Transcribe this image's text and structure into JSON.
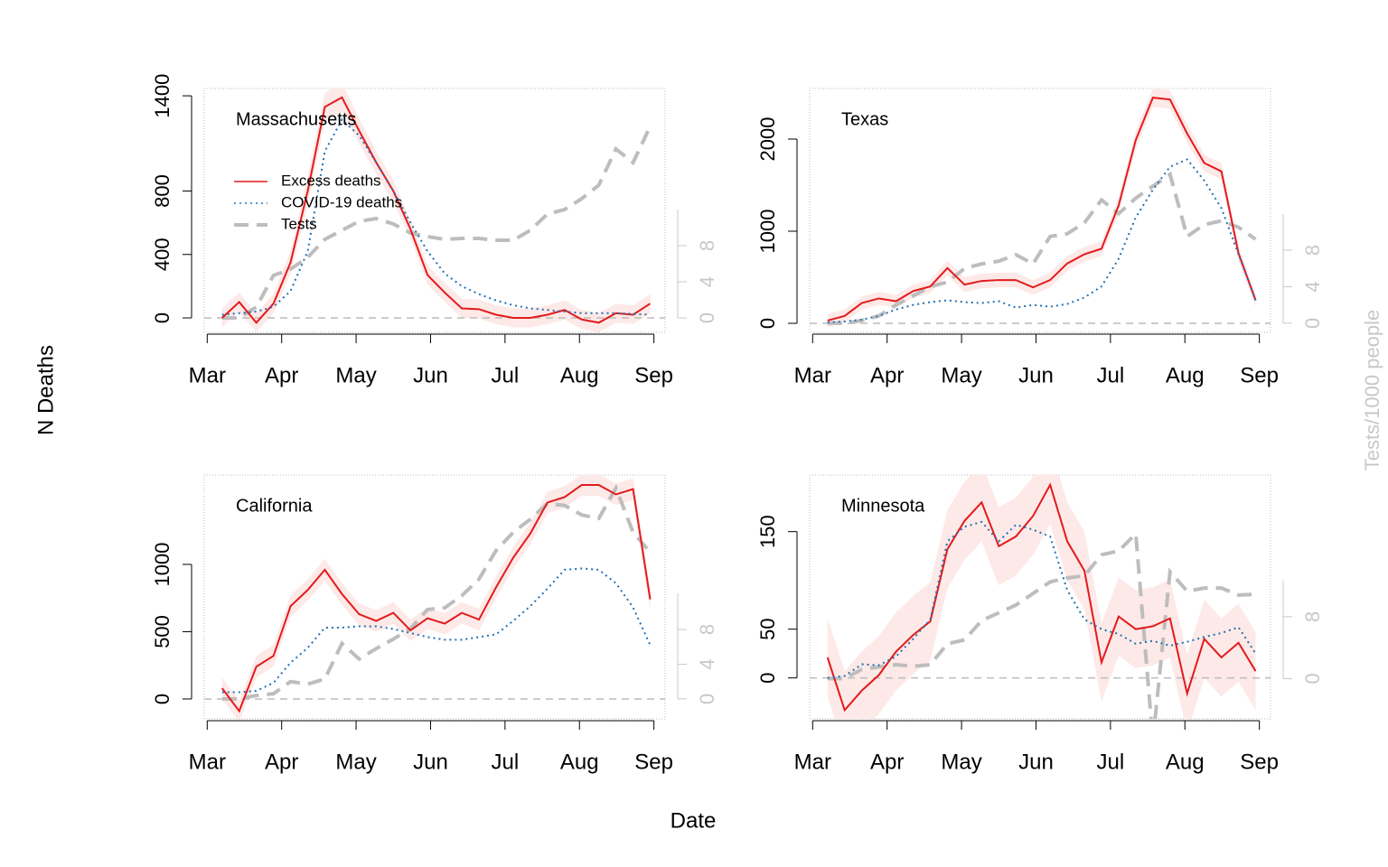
{
  "labels": {
    "x": "Date",
    "y": "N Deaths",
    "y2": "Tests/1000 people"
  },
  "chart_data": [
    {
      "type": "line",
      "title": "Massachusetts",
      "legend": "upper left",
      "hline": 0,
      "x": [
        3.2,
        3.43,
        3.66,
        3.89,
        4.12,
        4.35,
        4.58,
        4.81,
        5.04,
        5.27,
        5.5,
        5.73,
        5.96,
        6.19,
        6.42,
        6.65,
        6.88,
        7.11,
        7.34,
        7.57,
        7.8,
        8.03,
        8.26,
        8.49,
        8.72,
        8.95
      ],
      "xlim": [
        2.96,
        9.15
      ],
      "xticks": [
        {
          "value": 3,
          "label": "Mar"
        },
        {
          "value": 4,
          "label": "Apr"
        },
        {
          "value": 5,
          "label": "May"
        },
        {
          "value": 6,
          "label": "Jun"
        },
        {
          "value": 7,
          "label": "Jul"
        },
        {
          "value": 8,
          "label": "Aug"
        },
        {
          "value": 9,
          "label": "Sep"
        }
      ],
      "ylim": [
        -91,
        1446
      ],
      "yticks": [
        0,
        400,
        800,
        1400
      ],
      "y2lim": [
        -1.6,
        25.4
      ],
      "y2ticks": [
        0,
        4,
        8
      ],
      "series": [
        {
          "name": "Excess deaths",
          "color": "#e31a1c",
          "dash": "solid",
          "band_color": "#fde9e7",
          "values": [
            0,
            100,
            -30,
            90,
            350,
            800,
            1330,
            1390,
            1180,
            980,
            800,
            560,
            270,
            160,
            60,
            55,
            20,
            0,
            0,
            20,
            50,
            -10,
            -30,
            30,
            20,
            90
          ],
          "lower": [
            -60,
            40,
            -90,
            30,
            280,
            710,
            1240,
            1300,
            1100,
            910,
            730,
            500,
            210,
            100,
            0,
            -5,
            -40,
            -60,
            -60,
            -40,
            -10,
            -70,
            -90,
            -30,
            -40,
            30
          ],
          "upper": [
            60,
            160,
            30,
            150,
            420,
            890,
            1420,
            1480,
            1260,
            1050,
            870,
            620,
            330,
            220,
            120,
            115,
            80,
            60,
            60,
            80,
            110,
            50,
            30,
            90,
            80,
            150
          ]
        },
        {
          "name": "COVID-19 deaths",
          "color": "#2171b5",
          "dash": "dotted",
          "values": [
            20,
            30,
            40,
            70,
            170,
            420,
            1050,
            1250,
            1150,
            980,
            800,
            600,
            420,
            280,
            200,
            150,
            110,
            80,
            60,
            50,
            40,
            30,
            30,
            30,
            25,
            20
          ]
        },
        {
          "name": "Tests",
          "color": "#bdbdbd",
          "dash": "dashed",
          "axis": "y2",
          "values": [
            0,
            0,
            1.2,
            4.7,
            5.4,
            6.7,
            8.7,
            9.7,
            10.7,
            11,
            10.4,
            9.4,
            9,
            8.7,
            8.8,
            8.8,
            8.6,
            8.6,
            9.7,
            11.5,
            12,
            13.2,
            14.7,
            18.7,
            17.2,
            21.2
          ]
        }
      ]
    },
    {
      "type": "line",
      "title": "Texas",
      "hline": 0,
      "x": [
        3.2,
        3.43,
        3.66,
        3.89,
        4.12,
        4.35,
        4.58,
        4.81,
        5.04,
        5.27,
        5.5,
        5.73,
        5.96,
        6.19,
        6.42,
        6.65,
        6.88,
        7.11,
        7.34,
        7.57,
        7.8,
        8.03,
        8.26,
        8.49,
        8.72,
        8.95
      ],
      "xlim": [
        2.96,
        9.15
      ],
      "xticks": [
        {
          "value": 3,
          "label": "Mar"
        },
        {
          "value": 4,
          "label": "Apr"
        },
        {
          "value": 5,
          "label": "May"
        },
        {
          "value": 6,
          "label": "Jun"
        },
        {
          "value": 7,
          "label": "Jul"
        },
        {
          "value": 8,
          "label": "Aug"
        },
        {
          "value": 9,
          "label": "Sep"
        }
      ],
      "ylim": [
        -98,
        2549
      ],
      "yticks": [
        0,
        1000,
        2000
      ],
      "y2lim": [
        -1,
        25.7
      ],
      "y2ticks": [
        0,
        4,
        8
      ],
      "series": [
        {
          "color": "#e31a1c",
          "dash": "solid",
          "band_color": "#fde9e7",
          "values": [
            30,
            80,
            220,
            270,
            240,
            350,
            400,
            600,
            420,
            460,
            470,
            470,
            390,
            470,
            650,
            750,
            810,
            1280,
            1990,
            2450,
            2430,
            2060,
            1740,
            1650,
            760,
            250
          ],
          "lower": [
            -40,
            10,
            150,
            200,
            170,
            280,
            330,
            520,
            340,
            380,
            390,
            390,
            310,
            390,
            570,
            670,
            730,
            1190,
            1890,
            2350,
            2330,
            1960,
            1650,
            1560,
            680,
            180
          ],
          "upper": [
            100,
            150,
            290,
            340,
            310,
            420,
            470,
            680,
            500,
            540,
            550,
            550,
            470,
            550,
            730,
            830,
            890,
            1370,
            2090,
            2550,
            2530,
            2160,
            1830,
            1740,
            840,
            320
          ]
        },
        {
          "color": "#2171b5",
          "dash": "dotted",
          "values": [
            10,
            20,
            40,
            80,
            150,
            200,
            230,
            250,
            230,
            220,
            240,
            170,
            200,
            180,
            210,
            280,
            400,
            700,
            1150,
            1450,
            1700,
            1780,
            1550,
            1250,
            750,
            250
          ]
        },
        {
          "color": "#bdbdbd",
          "dash": "dashed",
          "axis": "y2",
          "values": [
            0,
            0,
            0.3,
            0.8,
            2,
            3,
            4,
            4.5,
            6,
            6.5,
            6.8,
            7.5,
            6.5,
            9.5,
            9.8,
            11,
            13.5,
            12,
            13.7,
            15,
            16.3,
            9.5,
            10.8,
            11.2,
            10.5,
            9.2
          ]
        }
      ]
    },
    {
      "type": "line",
      "title": "California",
      "hline": 0,
      "x": [
        3.2,
        3.43,
        3.66,
        3.89,
        4.12,
        4.35,
        4.58,
        4.81,
        5.04,
        5.27,
        5.5,
        5.73,
        5.96,
        6.19,
        6.42,
        6.65,
        6.88,
        7.11,
        7.34,
        7.57,
        7.8,
        8.03,
        8.26,
        8.49,
        8.72,
        8.95
      ],
      "xlim": [
        2.96,
        9.15
      ],
      "xticks": [
        {
          "value": 3,
          "label": "Mar"
        },
        {
          "value": 4,
          "label": "Apr"
        },
        {
          "value": 5,
          "label": "May"
        },
        {
          "value": 6,
          "label": "Jun"
        },
        {
          "value": 7,
          "label": "Jul"
        },
        {
          "value": 8,
          "label": "Aug"
        },
        {
          "value": 9,
          "label": "Sep"
        }
      ],
      "ylim": [
        -148,
        1664
      ],
      "yticks": [
        0,
        500,
        1000
      ],
      "y2lim": [
        -2.3,
        25.8
      ],
      "y2ticks": [
        0,
        4,
        8
      ],
      "series": [
        {
          "color": "#e31a1c",
          "dash": "solid",
          "band_color": "#fde9e7",
          "values": [
            80,
            -90,
            240,
            320,
            690,
            810,
            960,
            780,
            630,
            580,
            640,
            510,
            600,
            560,
            640,
            590,
            830,
            1050,
            1230,
            1460,
            1500,
            1590,
            1590,
            1520,
            1560,
            740
          ],
          "lower": [
            0,
            -170,
            160,
            240,
            610,
            730,
            880,
            700,
            550,
            500,
            560,
            430,
            520,
            480,
            560,
            510,
            750,
            970,
            1150,
            1380,
            1420,
            1510,
            1510,
            1440,
            1480,
            660
          ],
          "upper": [
            160,
            -10,
            320,
            400,
            770,
            890,
            1040,
            860,
            710,
            660,
            720,
            590,
            680,
            640,
            720,
            670,
            910,
            1130,
            1310,
            1540,
            1580,
            1670,
            1670,
            1600,
            1640,
            820
          ]
        },
        {
          "color": "#2171b5",
          "dash": "dotted",
          "values": [
            50,
            50,
            60,
            120,
            270,
            380,
            530,
            530,
            540,
            540,
            520,
            490,
            460,
            440,
            440,
            460,
            480,
            580,
            690,
            820,
            960,
            970,
            960,
            860,
            680,
            400
          ]
        },
        {
          "color": "#bdbdbd",
          "dash": "dashed",
          "axis": "y2",
          "values": [
            0,
            0,
            0.4,
            0.6,
            2,
            1.7,
            2.3,
            6.4,
            4.6,
            5.8,
            6.9,
            8.1,
            10.3,
            10.5,
            11.9,
            13.8,
            17.1,
            19.2,
            20.7,
            22.5,
            22.3,
            21.2,
            20.8,
            24.3,
            19.2,
            16.9
          ]
        }
      ]
    },
    {
      "type": "line",
      "title": "Minnesota",
      "hline": 0,
      "x": [
        3.2,
        3.43,
        3.66,
        3.89,
        4.12,
        4.35,
        4.58,
        4.81,
        5.04,
        5.27,
        5.5,
        5.73,
        5.96,
        6.19,
        6.42,
        6.65,
        6.88,
        7.11,
        7.34,
        7.57,
        7.8,
        8.03,
        8.26,
        8.49,
        8.72,
        8.95
      ],
      "xlim": [
        2.96,
        9.15
      ],
      "xticks": [
        {
          "value": 3,
          "label": "Mar"
        },
        {
          "value": 4,
          "label": "Apr"
        },
        {
          "value": 5,
          "label": "May"
        },
        {
          "value": 6,
          "label": "Jun"
        },
        {
          "value": 7,
          "label": "Jul"
        },
        {
          "value": 8,
          "label": "Aug"
        },
        {
          "value": 9,
          "label": "Sep"
        }
      ],
      "ylim": [
        -42,
        208
      ],
      "yticks": [
        0,
        50,
        150
      ],
      "y2lim": [
        -5.2,
        26.3
      ],
      "y2ticks": [
        0,
        8
      ],
      "series": [
        {
          "color": "#e31a1c",
          "dash": "solid",
          "band_color": "#fde9e7",
          "values": [
            21,
            -33,
            -13,
            3,
            27,
            44,
            58,
            132,
            161,
            180,
            135,
            145,
            166,
            198,
            140,
            110,
            16,
            63,
            50,
            53,
            61,
            -16,
            40,
            21,
            36,
            7
          ],
          "lower": [
            -19,
            -73,
            -53,
            -37,
            -13,
            4,
            18,
            92,
            121,
            140,
            95,
            105,
            126,
            158,
            100,
            70,
            -24,
            23,
            10,
            13,
            21,
            -56,
            0,
            -19,
            -4,
            -33
          ],
          "upper": [
            61,
            7,
            27,
            43,
            67,
            84,
            98,
            172,
            201,
            220,
            175,
            185,
            206,
            238,
            180,
            150,
            56,
            103,
            90,
            93,
            101,
            24,
            80,
            61,
            76,
            47
          ]
        },
        {
          "color": "#2171b5",
          "dash": "dotted",
          "values": [
            0,
            2,
            14,
            13,
            22,
            40,
            60,
            140,
            155,
            160,
            140,
            157,
            152,
            145,
            90,
            60,
            50,
            45,
            35,
            38,
            33,
            37,
            42,
            46,
            52,
            25
          ]
        },
        {
          "color": "#bdbdbd",
          "dash": "dashed",
          "axis": "y2",
          "values": [
            0,
            0,
            1.2,
            1.5,
            1.8,
            1.6,
            1.8,
            4.5,
            5,
            7.5,
            8.5,
            9.5,
            11,
            12.5,
            13,
            13.3,
            16,
            16.5,
            18.7,
            -8,
            13.8,
            11.3,
            11.7,
            11.7,
            10.8,
            10.9
          ]
        }
      ]
    }
  ]
}
